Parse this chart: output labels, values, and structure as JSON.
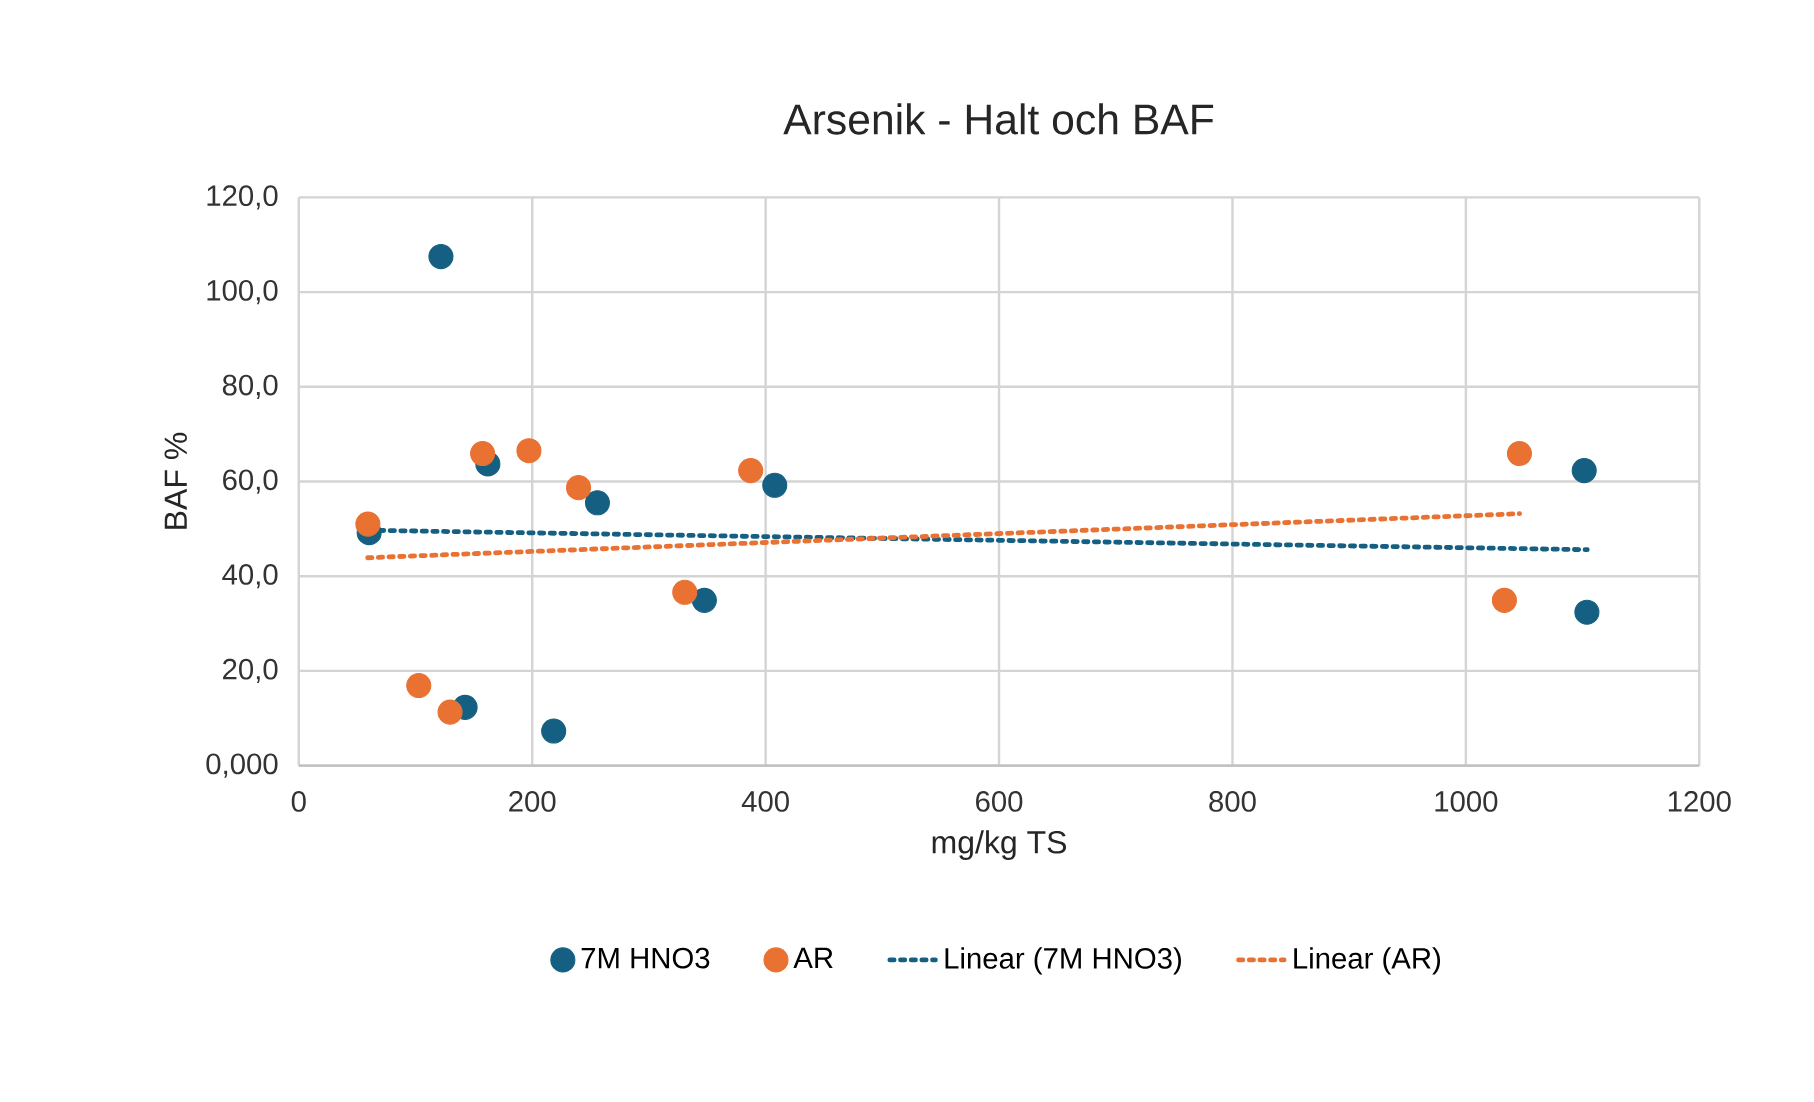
{
  "chart_data": {
    "type": "scatter",
    "title": "Arsenik - Halt och BAF",
    "xlabel": "mg/kg TS",
    "ylabel": "BAF %",
    "xlim": [
      0,
      1200
    ],
    "xticks": [
      0,
      200,
      400,
      600,
      800,
      1000,
      1200
    ],
    "ylim": [
      0,
      120
    ],
    "yticks": [
      {
        "value": 0,
        "label": "0,000"
      },
      {
        "value": 20,
        "label": "20,0"
      },
      {
        "value": 40,
        "label": "40,0"
      },
      {
        "value": 60,
        "label": "60,0"
      },
      {
        "value": 80,
        "label": "80,0"
      },
      {
        "value": 100,
        "label": "100,0"
      },
      {
        "value": 120,
        "label": "120,0"
      }
    ],
    "grid": true,
    "legend": "bottom",
    "marker": "circle",
    "series": [
      {
        "name": "7M HNO3",
        "color": "#156082",
        "x": [
          121.8,
          162,
          255.9,
          60.3,
          347.5,
          142.5,
          218.4,
          407.8,
          1101.4,
          1103.7
        ],
        "values": [
          107.5,
          63.7,
          55.5,
          49.2,
          34.9,
          12.3,
          7.3,
          59.2,
          62.3,
          32.4
        ]
      },
      {
        "name": "AR",
        "color": "#e97132",
        "x": [
          157.5,
          197.2,
          239.7,
          59.2,
          330.7,
          102.8,
          129.6,
          387.2,
          1045.9,
          1033
        ],
        "values": [
          65.9,
          66.5,
          58.7,
          51.0,
          36.6,
          16.9,
          11.3,
          62.3,
          65.9,
          34.9
        ]
      },
      {
        "name": "Linear (7M HNO3)",
        "type": "line",
        "line_style": "dotted",
        "marker": "none",
        "color": "#156082",
        "x": [
          60,
          1104
        ],
        "values": [
          49.7,
          45.6
        ]
      },
      {
        "name": "Linear (AR)",
        "type": "line",
        "line_style": "dotted",
        "marker": "none",
        "color": "#e97132",
        "x": [
          59,
          1046
        ],
        "values": [
          43.9,
          53.2
        ]
      }
    ]
  }
}
